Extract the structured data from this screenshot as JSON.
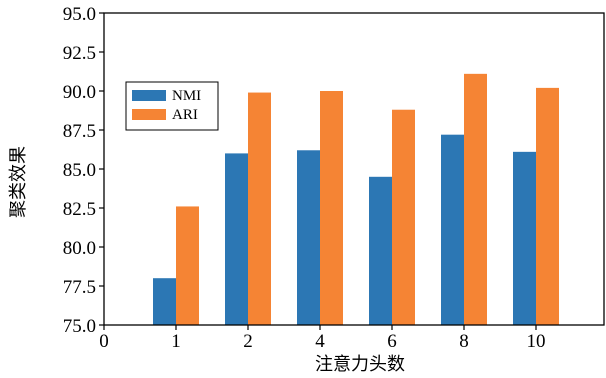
{
  "chart_data": {
    "type": "bar",
    "title": "",
    "xlabel": "注意力头数",
    "ylabel": "聚类效果",
    "categories": [
      "1",
      "2",
      "4",
      "6",
      "8",
      "10"
    ],
    "x_ticks": [
      "0",
      "1",
      "2",
      "4",
      "6",
      "8",
      "10"
    ],
    "y_ticks": [
      "75.0",
      "77.5",
      "80.0",
      "82.5",
      "85.0",
      "87.5",
      "90.0",
      "92.5",
      "95.0"
    ],
    "ylim": [
      75.0,
      95.0
    ],
    "grid": false,
    "legend_position": "upper-left",
    "series": [
      {
        "name": "NMI",
        "color": "#2c77b4",
        "values": [
          78.0,
          86.0,
          86.2,
          84.5,
          87.2,
          86.1
        ]
      },
      {
        "name": "ARI",
        "color": "#f58434",
        "values": [
          82.6,
          89.9,
          90.0,
          88.8,
          91.1,
          90.2
        ]
      }
    ]
  }
}
